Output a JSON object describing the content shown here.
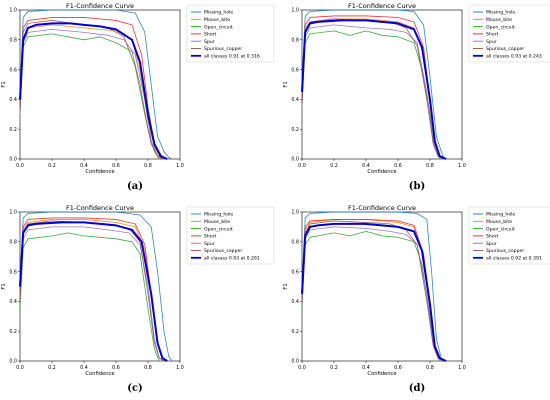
{
  "colors": {
    "Missing_hole": "#1f77b4",
    "Mouse_bite": "#ff7f0e",
    "Open_circuit": "#2ca02c",
    "Short": "#d62728",
    "Spur": "#9467bd",
    "Spurious_copper": "#8c564b",
    "all": "#0000cc",
    "axis": "#000000"
  },
  "panel_labels": [
    "(a)",
    "(b)",
    "(c)",
    "(d)"
  ],
  "chart_data": [
    {
      "type": "line",
      "title": "F1-Confidence Curve",
      "xlabel": "Confidence",
      "ylabel": "F1",
      "xlim": [
        0,
        1
      ],
      "ylim": [
        0,
        1
      ],
      "xticks": [
        "0.0",
        "0.2",
        "0.4",
        "0.6",
        "0.8",
        "1.0"
      ],
      "yticks": [
        "0.0",
        "0.2",
        "0.4",
        "0.6",
        "0.8",
        "1.0"
      ],
      "grid": false,
      "legend": "right",
      "series": [
        {
          "name": "Missing_hole",
          "x": [
            0,
            0.02,
            0.05,
            0.2,
            0.4,
            0.6,
            0.72,
            0.78,
            0.82,
            0.86,
            0.9,
            0.93,
            0.95
          ],
          "y": [
            0.45,
            0.95,
            0.99,
            1.0,
            1.0,
            1.0,
            0.98,
            0.85,
            0.5,
            0.15,
            0.05,
            0.01,
            0
          ]
        },
        {
          "name": "Mouse_bite",
          "x": [
            0,
            0.02,
            0.05,
            0.2,
            0.4,
            0.6,
            0.7,
            0.75,
            0.8,
            0.84,
            0.88,
            0.9
          ],
          "y": [
            0.3,
            0.8,
            0.88,
            0.9,
            0.88,
            0.86,
            0.8,
            0.6,
            0.25,
            0.08,
            0.01,
            0
          ]
        },
        {
          "name": "Open_circuit",
          "x": [
            0,
            0.02,
            0.05,
            0.2,
            0.4,
            0.5,
            0.6,
            0.7,
            0.75,
            0.8,
            0.84,
            0.87
          ],
          "y": [
            0.3,
            0.75,
            0.82,
            0.84,
            0.8,
            0.82,
            0.78,
            0.72,
            0.5,
            0.2,
            0.05,
            0
          ]
        },
        {
          "name": "Short",
          "x": [
            0,
            0.02,
            0.05,
            0.2,
            0.4,
            0.6,
            0.7,
            0.76,
            0.8,
            0.84,
            0.87,
            0.9
          ],
          "y": [
            0.4,
            0.88,
            0.93,
            0.95,
            0.95,
            0.93,
            0.9,
            0.7,
            0.35,
            0.1,
            0.02,
            0
          ]
        },
        {
          "name": "Spur",
          "x": [
            0,
            0.02,
            0.05,
            0.2,
            0.4,
            0.55,
            0.65,
            0.72,
            0.78,
            0.82,
            0.86,
            0.89
          ],
          "y": [
            0.3,
            0.78,
            0.85,
            0.87,
            0.85,
            0.83,
            0.8,
            0.7,
            0.4,
            0.12,
            0.02,
            0
          ]
        },
        {
          "name": "Spurious_copper",
          "x": [
            0,
            0.02,
            0.05,
            0.2,
            0.4,
            0.55,
            0.65,
            0.72,
            0.78,
            0.82,
            0.86,
            0.89
          ],
          "y": [
            0.35,
            0.85,
            0.91,
            0.93,
            0.9,
            0.88,
            0.82,
            0.62,
            0.3,
            0.1,
            0.02,
            0
          ]
        },
        {
          "name": "all classes 0.91 at 0.316",
          "x": [
            0,
            0.02,
            0.05,
            0.1,
            0.2,
            0.316,
            0.4,
            0.5,
            0.6,
            0.7,
            0.75,
            0.8,
            0.84,
            0.88,
            0.92
          ],
          "y": [
            0.4,
            0.8,
            0.88,
            0.9,
            0.91,
            0.91,
            0.9,
            0.89,
            0.87,
            0.8,
            0.65,
            0.3,
            0.1,
            0.02,
            0
          ]
        }
      ]
    },
    {
      "type": "line",
      "title": "F1-Confidence Curve",
      "xlabel": "Confidence",
      "ylabel": "F1",
      "xlim": [
        0,
        1
      ],
      "ylim": [
        0,
        1
      ],
      "xticks": [
        "0.0",
        "0.2",
        "0.4",
        "0.6",
        "0.8",
        "1.0"
      ],
      "yticks": [
        "0.0",
        "0.2",
        "0.4",
        "0.6",
        "0.8",
        "1.0"
      ],
      "grid": false,
      "legend": "right",
      "series": [
        {
          "name": "Missing_hole",
          "x": [
            0,
            0.02,
            0.05,
            0.2,
            0.4,
            0.6,
            0.7,
            0.76,
            0.8,
            0.84,
            0.88,
            0.9
          ],
          "y": [
            0.5,
            0.96,
            0.99,
            1.0,
            1.0,
            1.0,
            0.99,
            0.9,
            0.55,
            0.15,
            0.02,
            0
          ]
        },
        {
          "name": "Mouse_bite",
          "x": [
            0,
            0.02,
            0.05,
            0.2,
            0.4,
            0.6,
            0.7,
            0.76,
            0.8,
            0.83,
            0.86,
            0.88
          ],
          "y": [
            0.4,
            0.88,
            0.92,
            0.94,
            0.94,
            0.92,
            0.88,
            0.7,
            0.35,
            0.1,
            0.02,
            0
          ]
        },
        {
          "name": "Open_circuit",
          "x": [
            0,
            0.02,
            0.05,
            0.2,
            0.3,
            0.4,
            0.5,
            0.6,
            0.7,
            0.75,
            0.8,
            0.83,
            0.86
          ],
          "y": [
            0.35,
            0.78,
            0.84,
            0.86,
            0.83,
            0.86,
            0.83,
            0.82,
            0.78,
            0.6,
            0.3,
            0.08,
            0
          ]
        },
        {
          "name": "Short",
          "x": [
            0,
            0.02,
            0.05,
            0.2,
            0.4,
            0.6,
            0.7,
            0.76,
            0.8,
            0.83,
            0.86,
            0.88
          ],
          "y": [
            0.4,
            0.9,
            0.95,
            0.96,
            0.96,
            0.95,
            0.92,
            0.75,
            0.4,
            0.12,
            0.02,
            0
          ]
        },
        {
          "name": "Spur",
          "x": [
            0,
            0.02,
            0.05,
            0.2,
            0.4,
            0.55,
            0.65,
            0.72,
            0.78,
            0.82,
            0.85,
            0.88
          ],
          "y": [
            0.35,
            0.82,
            0.88,
            0.9,
            0.88,
            0.87,
            0.85,
            0.78,
            0.45,
            0.12,
            0.02,
            0
          ]
        },
        {
          "name": "Spurious_copper",
          "x": [
            0,
            0.02,
            0.05,
            0.2,
            0.4,
            0.55,
            0.65,
            0.72,
            0.78,
            0.82,
            0.85,
            0.88
          ],
          "y": [
            0.38,
            0.86,
            0.92,
            0.94,
            0.93,
            0.92,
            0.88,
            0.76,
            0.4,
            0.1,
            0.02,
            0
          ]
        },
        {
          "name": "all classes 0.93 at 0.243",
          "x": [
            0,
            0.02,
            0.05,
            0.1,
            0.243,
            0.4,
            0.5,
            0.6,
            0.7,
            0.75,
            0.8,
            0.83,
            0.86,
            0.9
          ],
          "y": [
            0.45,
            0.85,
            0.91,
            0.92,
            0.93,
            0.93,
            0.92,
            0.91,
            0.87,
            0.75,
            0.4,
            0.12,
            0.02,
            0
          ]
        }
      ]
    },
    {
      "type": "line",
      "title": "F1-Confidence Curve",
      "xlabel": "Confidence",
      "ylabel": "F1",
      "xlim": [
        0,
        1
      ],
      "ylim": [
        0,
        1
      ],
      "xticks": [
        "0.0",
        "0.2",
        "0.4",
        "0.6",
        "0.8",
        "1.0"
      ],
      "yticks": [
        "0.0",
        "0.2",
        "0.4",
        "0.6",
        "0.8",
        "1.0"
      ],
      "grid": false,
      "legend": "right",
      "series": [
        {
          "name": "Missing_hole",
          "x": [
            0,
            0.02,
            0.05,
            0.2,
            0.4,
            0.6,
            0.75,
            0.82,
            0.86,
            0.9,
            0.93,
            0.95
          ],
          "y": [
            0.55,
            0.96,
            0.99,
            1.0,
            1.0,
            1.0,
            0.98,
            0.9,
            0.6,
            0.2,
            0.03,
            0
          ]
        },
        {
          "name": "Mouse_bite",
          "x": [
            0,
            0.02,
            0.05,
            0.2,
            0.4,
            0.6,
            0.72,
            0.78,
            0.82,
            0.86,
            0.89,
            0.91
          ],
          "y": [
            0.45,
            0.88,
            0.93,
            0.95,
            0.95,
            0.93,
            0.9,
            0.75,
            0.45,
            0.12,
            0.02,
            0
          ]
        },
        {
          "name": "Open_circuit",
          "x": [
            0,
            0.02,
            0.05,
            0.2,
            0.3,
            0.4,
            0.5,
            0.6,
            0.7,
            0.75,
            0.8,
            0.84,
            0.87
          ],
          "y": [
            0.35,
            0.76,
            0.82,
            0.84,
            0.86,
            0.84,
            0.83,
            0.82,
            0.8,
            0.72,
            0.35,
            0.08,
            0
          ]
        },
        {
          "name": "Short",
          "x": [
            0,
            0.02,
            0.05,
            0.2,
            0.4,
            0.6,
            0.72,
            0.78,
            0.82,
            0.86,
            0.89,
            0.91
          ],
          "y": [
            0.45,
            0.9,
            0.95,
            0.96,
            0.96,
            0.95,
            0.92,
            0.78,
            0.45,
            0.12,
            0.02,
            0
          ]
        },
        {
          "name": "Spur",
          "x": [
            0,
            0.02,
            0.05,
            0.2,
            0.4,
            0.55,
            0.68,
            0.75,
            0.8,
            0.84,
            0.87,
            0.9
          ],
          "y": [
            0.4,
            0.82,
            0.88,
            0.9,
            0.9,
            0.88,
            0.86,
            0.78,
            0.5,
            0.15,
            0.02,
            0
          ]
        },
        {
          "name": "Spurious_copper",
          "x": [
            0,
            0.02,
            0.05,
            0.2,
            0.4,
            0.55,
            0.68,
            0.75,
            0.8,
            0.84,
            0.87,
            0.9
          ],
          "y": [
            0.4,
            0.86,
            0.92,
            0.94,
            0.93,
            0.92,
            0.89,
            0.8,
            0.45,
            0.12,
            0.02,
            0
          ]
        },
        {
          "name": "all classes 0.93 at 0.261",
          "x": [
            0,
            0.02,
            0.05,
            0.1,
            0.261,
            0.4,
            0.5,
            0.6,
            0.7,
            0.76,
            0.82,
            0.86,
            0.89,
            0.92
          ],
          "y": [
            0.5,
            0.86,
            0.91,
            0.92,
            0.93,
            0.93,
            0.92,
            0.91,
            0.88,
            0.8,
            0.45,
            0.12,
            0.02,
            0
          ]
        }
      ]
    },
    {
      "type": "line",
      "title": "F1-Confidence Curve",
      "xlabel": "Confidence",
      "ylabel": "F1",
      "xlim": [
        0,
        1
      ],
      "ylim": [
        0,
        1
      ],
      "xticks": [
        "0.0",
        "0.2",
        "0.4",
        "0.6",
        "0.8",
        "1.0"
      ],
      "yticks": [
        "0.0",
        "0.2",
        "0.4",
        "0.6",
        "0.8",
        "1.0"
      ],
      "grid": false,
      "legend": "right",
      "series": [
        {
          "name": "Missing_hole",
          "x": [
            0,
            0.02,
            0.05,
            0.2,
            0.4,
            0.6,
            0.72,
            0.78,
            0.81,
            0.84,
            0.87,
            0.89
          ],
          "y": [
            0.5,
            0.96,
            0.99,
            1.0,
            1.0,
            1.0,
            0.99,
            0.95,
            0.6,
            0.15,
            0.02,
            0
          ]
        },
        {
          "name": "Mouse_bite",
          "x": [
            0,
            0.02,
            0.05,
            0.2,
            0.4,
            0.6,
            0.7,
            0.76,
            0.8,
            0.83,
            0.86,
            0.88
          ],
          "y": [
            0.4,
            0.88,
            0.93,
            0.95,
            0.95,
            0.93,
            0.9,
            0.7,
            0.35,
            0.1,
            0.02,
            0
          ]
        },
        {
          "name": "Open_circuit",
          "x": [
            0,
            0.02,
            0.05,
            0.2,
            0.3,
            0.4,
            0.5,
            0.6,
            0.7,
            0.75,
            0.8,
            0.83,
            0.86
          ],
          "y": [
            0.35,
            0.78,
            0.83,
            0.86,
            0.84,
            0.87,
            0.84,
            0.83,
            0.8,
            0.65,
            0.3,
            0.08,
            0
          ]
        },
        {
          "name": "Short",
          "x": [
            0,
            0.02,
            0.05,
            0.2,
            0.4,
            0.6,
            0.7,
            0.76,
            0.8,
            0.83,
            0.86,
            0.88
          ],
          "y": [
            0.42,
            0.9,
            0.94,
            0.95,
            0.95,
            0.94,
            0.91,
            0.72,
            0.38,
            0.1,
            0.02,
            0
          ]
        },
        {
          "name": "Spur",
          "x": [
            0,
            0.02,
            0.05,
            0.2,
            0.4,
            0.55,
            0.65,
            0.72,
            0.78,
            0.82,
            0.85,
            0.88
          ],
          "y": [
            0.38,
            0.82,
            0.88,
            0.9,
            0.89,
            0.87,
            0.85,
            0.78,
            0.45,
            0.12,
            0.02,
            0
          ]
        },
        {
          "name": "Spurious_copper",
          "x": [
            0,
            0.02,
            0.05,
            0.2,
            0.4,
            0.55,
            0.65,
            0.72,
            0.78,
            0.82,
            0.85,
            0.88
          ],
          "y": [
            0.4,
            0.86,
            0.92,
            0.94,
            0.93,
            0.92,
            0.88,
            0.78,
            0.4,
            0.1,
            0.02,
            0
          ]
        },
        {
          "name": "all classes 0.92 at 0.391",
          "x": [
            0,
            0.02,
            0.05,
            0.1,
            0.2,
            0.391,
            0.5,
            0.6,
            0.7,
            0.75,
            0.8,
            0.83,
            0.86,
            0.9
          ],
          "y": [
            0.45,
            0.84,
            0.9,
            0.91,
            0.92,
            0.92,
            0.91,
            0.9,
            0.87,
            0.74,
            0.38,
            0.1,
            0.02,
            0
          ]
        }
      ]
    }
  ]
}
